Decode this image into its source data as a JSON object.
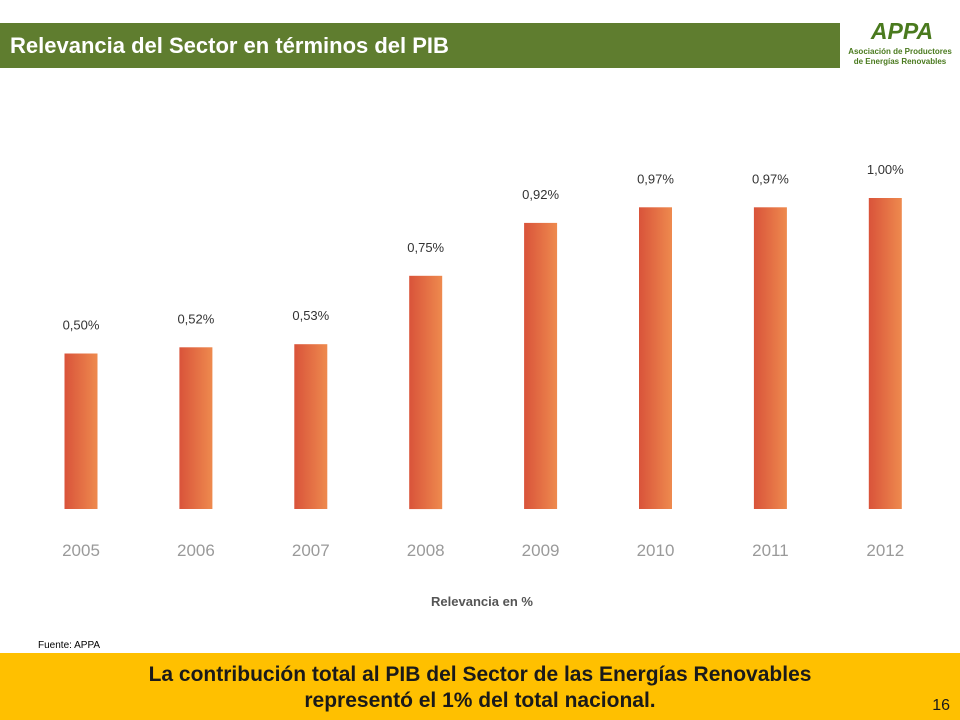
{
  "slide": {
    "title": "Relevancia del Sector en términos del PIB",
    "source": "Fuente: APPA",
    "conclusion_line1": "La contribución total al PIB del Sector de las Energías Renovables",
    "conclusion_line2": "representó el 1% del total nacional.",
    "page_number": "16"
  },
  "logo": {
    "mark": "APPA",
    "line1": "Asociación de Productores",
    "line2": "de Energías Renovables"
  },
  "colors": {
    "title_bar": "#5f7d2f",
    "bottom_bar": "#ffc000",
    "bar_dark": "#d9533a",
    "bar_light": "#ee8a4e",
    "logo_green": "#4a7a1e"
  },
  "chart_data": {
    "type": "bar",
    "categories": [
      "2005",
      "2006",
      "2007",
      "2008",
      "2009",
      "2010",
      "2011",
      "2012"
    ],
    "values": [
      0.5,
      0.52,
      0.53,
      0.75,
      0.92,
      0.97,
      0.97,
      1.0
    ],
    "value_labels": [
      "0,50%",
      "0,52%",
      "0,53%",
      "0,75%",
      "0,92%",
      "0,97%",
      "0,97%",
      "1,00%"
    ],
    "xlabel": "Relevancia en %",
    "ylim": [
      0,
      1.0
    ],
    "grid": false,
    "legend": "none"
  }
}
